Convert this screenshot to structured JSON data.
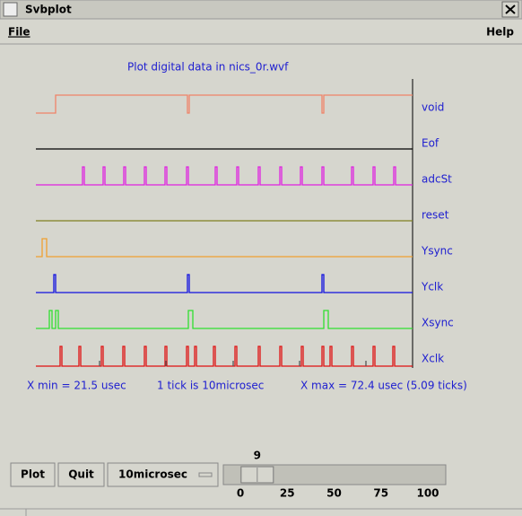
{
  "window": {
    "title": "Svbplot"
  },
  "menu": {
    "left": "File",
    "right": "Help"
  },
  "plot": {
    "title": "Plot digital data in nics_0r.wvf",
    "signals": [
      "void",
      "Eof",
      "adcSt",
      "reset",
      "Ysync",
      "Yclk",
      "Xsync",
      "Xclk"
    ],
    "x_min_label": "X min = 21.5 usec",
    "tick_label": "1 tick is 10microsec",
    "x_max_label": "X max = 72.4 usec (5.09 ticks)"
  },
  "controls": {
    "plot_button": "Plot",
    "quit_button": "Quit",
    "tick_menu": "10microsec"
  },
  "slider": {
    "value": 9,
    "min": 0,
    "max": 100,
    "ticks": [
      0,
      25,
      50,
      75,
      100
    ]
  }
}
